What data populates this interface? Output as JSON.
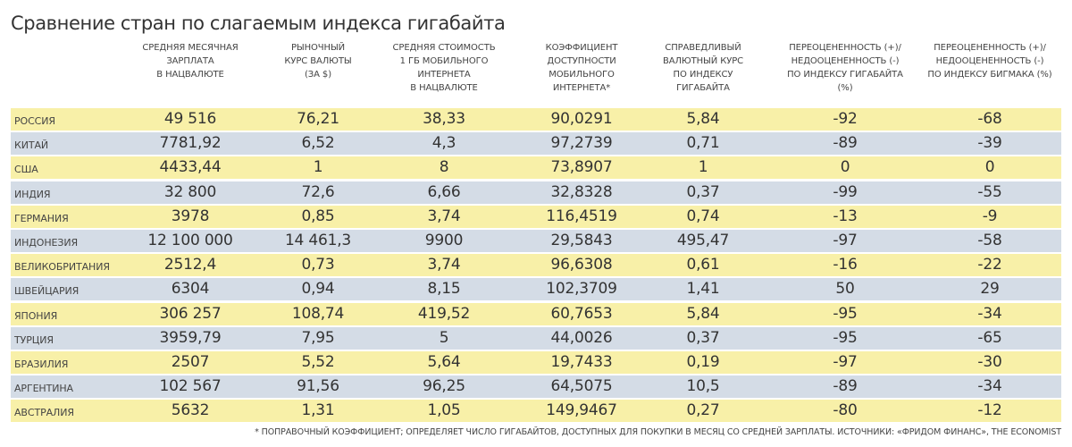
{
  "chart_data": {
    "type": "table",
    "title": "Сравнение стран по слагаемым индекса гигабайта",
    "columns": [
      {
        "lines": [
          "СРЕДНЯЯ МЕСЯЧНАЯ",
          "ЗАРПЛАТА",
          "В НАЦВАЛЮТЕ"
        ]
      },
      {
        "lines": [
          "РЫНОЧНЫЙ",
          "КУРС ВАЛЮТЫ",
          "(ЗА $)"
        ]
      },
      {
        "lines": [
          "СРЕДНЯЯ СТОИМОСТЬ",
          "1 ГБ МОБИЛЬНОГО",
          "ИНТЕРНЕТА",
          "В НАЦВАЛЮТЕ"
        ]
      },
      {
        "lines": [
          "КОЭФФИЦИЕНТ",
          "ДОСТУПНОСТИ",
          "МОБИЛЬНОГО",
          "ИНТЕРНЕТА*"
        ]
      },
      {
        "lines": [
          "СПРАВЕДЛИВЫЙ",
          "ВАЛЮТНЫЙ КУРС",
          "ПО ИНДЕКСУ",
          "ГИГАБАЙТА"
        ]
      },
      {
        "lines": [
          "ПЕРЕОЦЕНЕННОСТЬ (+)/",
          "НЕДООЦЕНЕННОСТЬ (-)",
          "ПО ИНДЕКСУ ГИГАБАЙТА",
          "(%)"
        ]
      },
      {
        "lines": [
          "ПЕРЕОЦЕНЕННОСТЬ (+)/",
          "НЕДООЦЕНЕННОСТЬ (-)",
          "ПО ИНДЕКСУ БИГМАКА (%)"
        ]
      }
    ],
    "rows": [
      {
        "country": "РОССИЯ",
        "values": [
          "49 516",
          "76,21",
          "38,33",
          "90,0291",
          "5,84",
          "-92",
          "-68"
        ]
      },
      {
        "country": "КИТАЙ",
        "values": [
          "7781,92",
          "6,52",
          "4,3",
          "97,2739",
          "0,71",
          "-89",
          "-39"
        ]
      },
      {
        "country": "США",
        "values": [
          "4433,44",
          "1",
          "8",
          "73,8907",
          "1",
          "0",
          "0"
        ]
      },
      {
        "country": "ИНДИЯ",
        "values": [
          "32 800",
          "72,6",
          "6,66",
          "32,8328",
          "0,37",
          "-99",
          "-55"
        ]
      },
      {
        "country": "ГЕРМАНИЯ",
        "values": [
          "3978",
          "0,85",
          "3,74",
          "116,4519",
          "0,74",
          "-13",
          "-9"
        ]
      },
      {
        "country": "ИНДОНЕЗИЯ",
        "values": [
          "12 100 000",
          "14 461,3",
          "9900",
          "29,5843",
          "495,47",
          "-97",
          "-58"
        ]
      },
      {
        "country": "ВЕЛИКОБРИТАНИЯ",
        "values": [
          "2512,4",
          "0,73",
          "3,74",
          "96,6308",
          "0,61",
          "-16",
          "-22"
        ]
      },
      {
        "country": "ШВЕЙЦАРИЯ",
        "values": [
          "6304",
          "0,94",
          "8,15",
          "102,3709",
          "1,41",
          "50",
          "29"
        ]
      },
      {
        "country": "ЯПОНИЯ",
        "values": [
          "306 257",
          "108,74",
          "419,52",
          "60,7653",
          "5,84",
          "-95",
          "-34"
        ]
      },
      {
        "country": "ТУРЦИЯ",
        "values": [
          "3959,79",
          "7,95",
          "5",
          "44,0026",
          "0,37",
          "-95",
          "-65"
        ]
      },
      {
        "country": "БРАЗИЛИЯ",
        "values": [
          "2507",
          "5,52",
          "5,64",
          "19,7433",
          "0,19",
          "-97",
          "-30"
        ]
      },
      {
        "country": "АРГЕНТИНА",
        "values": [
          "102 567",
          "91,56",
          "96,25",
          "64,5075",
          "10,5",
          "-89",
          "-34"
        ]
      },
      {
        "country": "АВСТРАЛИЯ",
        "values": [
          "5632",
          "1,31",
          "1,05",
          "149,9467",
          "0,27",
          "-80",
          "-12"
        ]
      }
    ],
    "footnote": "* ПОПРАВОЧНЫЙ КОЭФФИЦИЕНТ; ОПРЕДЕЛЯЕТ ЧИСЛО ГИГАБАЙТОВ, ДОСТУПНЫХ ДЛЯ ПОКУПКИ В МЕСЯЦ СО СРЕДНЕЙ ЗАРПЛАТЫ. ИСТОЧНИКИ: «ФРИДОМ ФИНАНС», THE ECONOMIST",
    "colors": {
      "row_odd": "#f8f0a8",
      "row_even": "#d4dce6"
    }
  }
}
